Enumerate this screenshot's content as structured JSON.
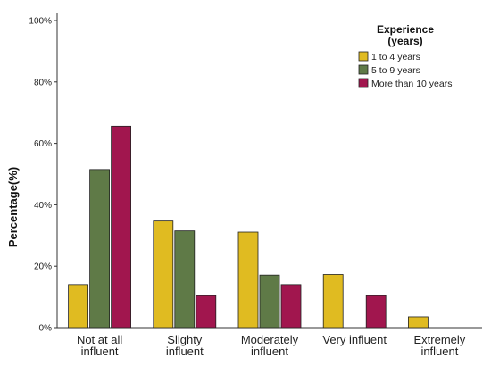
{
  "chart_data": {
    "type": "bar",
    "ylabel": "Percentage(%)",
    "xlabel": "",
    "ylim": [
      0,
      100
    ],
    "yticks": [
      "0%",
      "20%",
      "40%",
      "60%",
      "80%",
      "100%"
    ],
    "grid": false,
    "legend_position": "top-right",
    "legend_title": [
      "Experience",
      "(years)"
    ],
    "categories": [
      [
        "Not at all",
        "influent"
      ],
      [
        "Slighty",
        "influent"
      ],
      [
        "Moderately",
        "influent"
      ],
      [
        "Very influent"
      ],
      [
        "Extremely",
        "influent"
      ]
    ],
    "series": [
      {
        "name": "1 to 4 years",
        "color": "#e0bb21",
        "values": [
          14,
          34.7,
          31.1,
          17.3,
          3.5
        ]
      },
      {
        "name": "5 to 9 years",
        "color": "#5f7a47",
        "values": [
          51.5,
          31.5,
          17.1,
          0,
          0
        ]
      },
      {
        "name": "More than 10 years",
        "color": "#a1164e",
        "values": [
          65.6,
          10.4,
          14,
          10.4,
          0
        ]
      }
    ]
  }
}
